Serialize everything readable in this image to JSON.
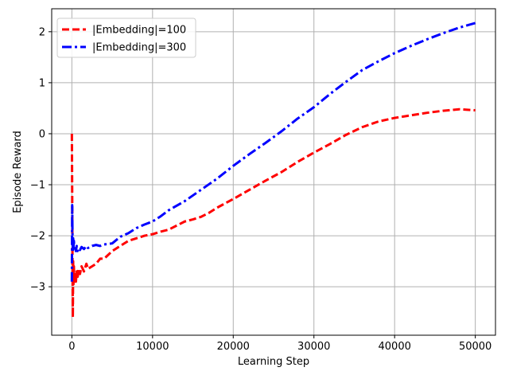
{
  "chart_data": {
    "type": "line",
    "title": "",
    "xlabel": "Learning Step",
    "ylabel": "Episode Reward",
    "xlim": [
      -2500,
      52500
    ],
    "ylim": [
      -3.95,
      2.45
    ],
    "xticks": [
      0,
      10000,
      20000,
      30000,
      40000,
      50000
    ],
    "xtick_labels": [
      "0",
      "10000",
      "20000",
      "30000",
      "40000",
      "50000"
    ],
    "yticks": [
      -3,
      -2,
      -1,
      0,
      1,
      2
    ],
    "ytick_labels": [
      "−3",
      "−2",
      "−1",
      "0",
      "1",
      "2"
    ],
    "grid": true,
    "legend_position": "top-left",
    "series": [
      {
        "name": "|Embedding|=100",
        "color": "#ff0000",
        "style": "dashed",
        "x": [
          0,
          40,
          80,
          120,
          160,
          200,
          250,
          300,
          400,
          500,
          600,
          700,
          800,
          1000,
          1200,
          1500,
          1800,
          2000,
          2500,
          3000,
          3500,
          4000,
          5000,
          6000,
          7000,
          8000,
          9000,
          10000,
          11000,
          12000,
          13000,
          14000,
          15000,
          16000,
          17000,
          18000,
          20000,
          22000,
          24000,
          26000,
          28000,
          30000,
          32000,
          34000,
          36000,
          38000,
          40000,
          42000,
          44000,
          46000,
          48000,
          50000
        ],
        "y": [
          0.0,
          -1.2,
          -2.6,
          -3.6,
          -2.5,
          -2.95,
          -2.6,
          -2.9,
          -2.75,
          -2.9,
          -2.7,
          -2.85,
          -2.65,
          -2.75,
          -2.6,
          -2.7,
          -2.55,
          -2.65,
          -2.6,
          -2.55,
          -2.45,
          -2.45,
          -2.3,
          -2.2,
          -2.1,
          -2.05,
          -2.0,
          -1.97,
          -1.92,
          -1.88,
          -1.8,
          -1.72,
          -1.68,
          -1.63,
          -1.55,
          -1.45,
          -1.28,
          -1.1,
          -0.92,
          -0.75,
          -0.55,
          -0.37,
          -0.2,
          -0.02,
          0.13,
          0.24,
          0.31,
          0.36,
          0.41,
          0.45,
          0.48,
          0.46
        ]
      },
      {
        "name": "|Embedding|=300",
        "color": "#0000ff",
        "style": "dashdot",
        "x": [
          0,
          40,
          80,
          120,
          160,
          200,
          250,
          300,
          400,
          500,
          600,
          700,
          800,
          1000,
          1200,
          1500,
          1800,
          2000,
          2500,
          3000,
          3500,
          4000,
          5000,
          6000,
          7000,
          8000,
          9000,
          10000,
          11000,
          12000,
          14000,
          16000,
          18000,
          20000,
          22000,
          24000,
          26000,
          28000,
          30000,
          32000,
          34000,
          36000,
          38000,
          40000,
          42000,
          44000,
          46000,
          48000,
          50000
        ],
        "y": [
          -2.9,
          -1.4,
          -2.0,
          -2.3,
          -2.05,
          -2.25,
          -2.1,
          -2.25,
          -2.2,
          -2.3,
          -2.2,
          -2.3,
          -2.25,
          -2.28,
          -2.22,
          -2.26,
          -2.2,
          -2.24,
          -2.2,
          -2.18,
          -2.2,
          -2.17,
          -2.15,
          -2.02,
          -1.95,
          -1.85,
          -1.78,
          -1.72,
          -1.62,
          -1.5,
          -1.32,
          -1.1,
          -0.88,
          -0.63,
          -0.4,
          -0.18,
          0.05,
          0.3,
          0.52,
          0.78,
          1.02,
          1.25,
          1.42,
          1.58,
          1.72,
          1.85,
          1.97,
          2.08,
          2.17
        ]
      }
    ]
  }
}
